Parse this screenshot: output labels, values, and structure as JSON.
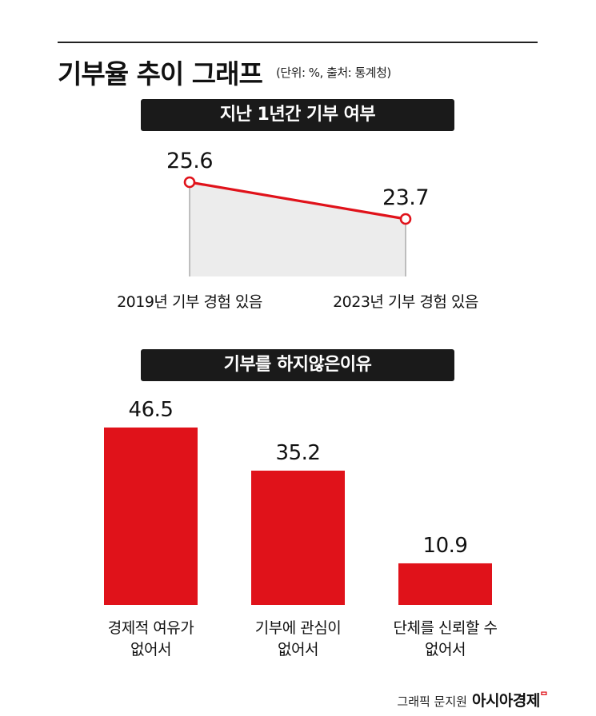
{
  "header": {
    "title": "기부율 추이 그래프",
    "subtitle": "(단위: %, 출처: 통계청)"
  },
  "colors": {
    "accent": "#e0121a",
    "banner": "#1a1a1a",
    "area_fill": "#ececec"
  },
  "chart_data": [
    {
      "type": "line",
      "title": "지난 1년간 기부 여부",
      "categories": [
        "2019년 기부 경험 있음",
        "2023년 기부 경험 있음"
      ],
      "values": [
        25.6,
        23.7
      ],
      "value_labels": [
        "25.6",
        "23.7"
      ]
    },
    {
      "type": "bar",
      "title": "기부를 하지않은이유",
      "categories": [
        [
          "경제적 여유가",
          "없어서"
        ],
        [
          "기부에 관심이",
          "없어서"
        ],
        [
          "단체를 신뢰할 수",
          "없어서"
        ]
      ],
      "values": [
        46.5,
        35.2,
        10.9
      ],
      "value_labels": [
        "46.5",
        "35.2",
        "10.9"
      ]
    }
  ],
  "credit": {
    "text": "그래픽 문지원",
    "brand": "아시아경제",
    "mark": "ᄆ"
  }
}
